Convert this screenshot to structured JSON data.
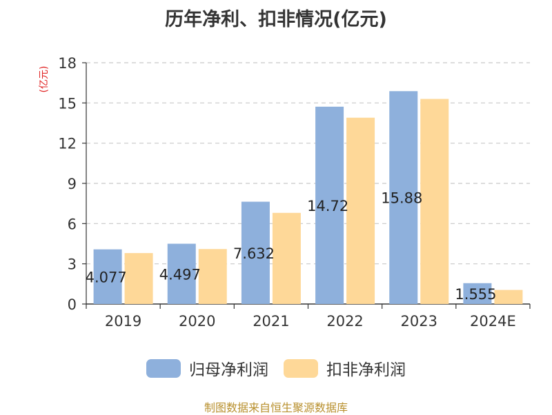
{
  "title": "历年净利、扣非情况(亿元)",
  "source": "制图数据来自恒生聚源数据库",
  "colors": {
    "series1": "#8eb0dc",
    "series2": "#fed898",
    "ylabel": "#e02020",
    "source": "#b8902e"
  },
  "chart_data": {
    "type": "bar",
    "title": "历年净利、扣非情况(亿元)",
    "xlabel": "",
    "ylabel": "(亿元)",
    "categories": [
      "2019",
      "2020",
      "2021",
      "2022",
      "2023",
      "2024E"
    ],
    "yticks": [
      "0",
      "3",
      "6",
      "9",
      "12",
      "15",
      "18"
    ],
    "ylim": [
      0,
      18
    ],
    "grid": true,
    "legend_position": "bottom",
    "series": [
      {
        "name": "归母净利润",
        "values": [
          4.077,
          4.497,
          7.632,
          14.72,
          15.88,
          1.555
        ],
        "labels": [
          "4.077",
          "4.497",
          "7.632",
          "14.72",
          "15.88",
          "1.555"
        ]
      },
      {
        "name": "扣非净利润",
        "values": [
          3.8,
          4.1,
          6.8,
          13.9,
          15.3,
          1.05
        ]
      }
    ]
  }
}
